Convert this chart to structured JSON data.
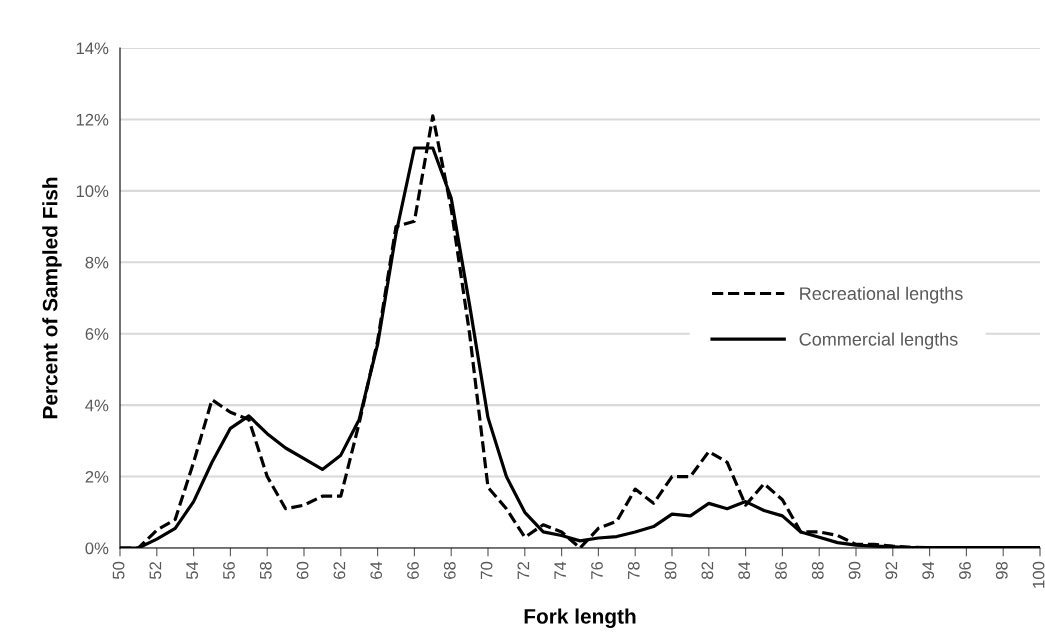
{
  "chart_data": {
    "type": "line",
    "xlabel": "Fork length",
    "ylabel": "Percent of Sampled Fish",
    "x": [
      50,
      51,
      52,
      53,
      54,
      55,
      56,
      57,
      58,
      59,
      60,
      61,
      62,
      63,
      64,
      65,
      66,
      67,
      68,
      69,
      70,
      71,
      72,
      73,
      74,
      75,
      76,
      77,
      78,
      79,
      80,
      81,
      82,
      83,
      84,
      85,
      86,
      87,
      88,
      89,
      90,
      91,
      92,
      93,
      94,
      95,
      96,
      97,
      98,
      99,
      100
    ],
    "series": [
      {
        "name": "Recreational lengths",
        "color": "#000000",
        "line_style": "dashed",
        "values": [
          0,
          0,
          0.5,
          0.8,
          2.4,
          4.15,
          3.8,
          3.6,
          2.0,
          1.1,
          1.2,
          1.45,
          1.45,
          3.5,
          5.8,
          9.0,
          9.15,
          12.1,
          9.5,
          6.0,
          1.7,
          1.1,
          0.3,
          0.65,
          0.45,
          0.0,
          0.55,
          0.75,
          1.65,
          1.25,
          2.0,
          2.0,
          2.7,
          2.4,
          1.2,
          1.8,
          1.35,
          0.45,
          0.45,
          0.35,
          0.1,
          0.1,
          0.05,
          0.02,
          0.01,
          0.01,
          0,
          0,
          0,
          0,
          0
        ]
      },
      {
        "name": "Commercial lengths",
        "color": "#000000",
        "line_style": "solid",
        "values": [
          0,
          0,
          0.25,
          0.55,
          1.3,
          2.4,
          3.35,
          3.7,
          3.2,
          2.8,
          2.5,
          2.2,
          2.6,
          3.6,
          5.7,
          8.8,
          11.2,
          11.2,
          9.8,
          6.8,
          3.65,
          2.0,
          1.0,
          0.45,
          0.35,
          0.2,
          0.28,
          0.32,
          0.45,
          0.6,
          0.95,
          0.9,
          1.25,
          1.1,
          1.3,
          1.05,
          0.9,
          0.45,
          0.3,
          0.15,
          0.08,
          0.05,
          0.03,
          0.01,
          0.01,
          0.01,
          0.01,
          0.01,
          0.01,
          0.01,
          0.01
        ]
      }
    ],
    "xlim": [
      50,
      100
    ],
    "xticks": [
      50,
      52,
      54,
      56,
      58,
      60,
      62,
      64,
      66,
      68,
      70,
      72,
      74,
      76,
      78,
      80,
      82,
      84,
      86,
      88,
      90,
      92,
      94,
      96,
      98,
      100
    ],
    "ylim": [
      0,
      14
    ],
    "yticks": [
      {
        "value": 0,
        "label": "0%"
      },
      {
        "value": 2,
        "label": "2%"
      },
      {
        "value": 4,
        "label": "4%"
      },
      {
        "value": 6,
        "label": "6%"
      },
      {
        "value": 8,
        "label": "8%"
      },
      {
        "value": 10,
        "label": "10%"
      },
      {
        "value": 12,
        "label": "12%"
      },
      {
        "value": 14,
        "label": "14%"
      }
    ],
    "grid": "y",
    "legend": "right",
    "marker": "none"
  }
}
